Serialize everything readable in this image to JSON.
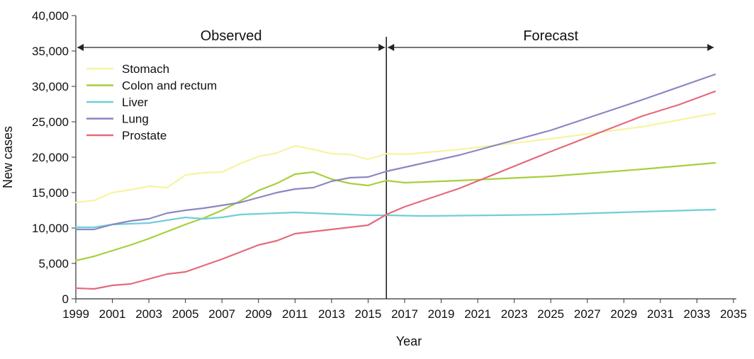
{
  "chart_data": {
    "type": "line",
    "title": "",
    "xlabel": "Year",
    "ylabel": "New cases",
    "xlim": [
      1999,
      2035
    ],
    "ylim": [
      0,
      40000
    ],
    "x_ticks": [
      "1999",
      "2001",
      "2003",
      "2005",
      "2007",
      "2009",
      "2011",
      "2013",
      "2015",
      "2017",
      "2019",
      "2021",
      "2023",
      "2025",
      "2027",
      "2029",
      "2031",
      "2033",
      "2035"
    ],
    "y_ticks": [
      "0",
      "5,000",
      "10,000",
      "15,000",
      "20,000",
      "25,000",
      "30,000",
      "35,000",
      "40,000"
    ],
    "grid": false,
    "legend_position": "top-left",
    "divider_year": 2016,
    "periods": [
      {
        "label": "Observed",
        "from": 1999,
        "to": 2016
      },
      {
        "label": "Forecast",
        "from": 2016,
        "to": 2034
      }
    ],
    "series": [
      {
        "name": "Stomach",
        "color": "#f6f4a0",
        "points": [
          [
            1999,
            13600
          ],
          [
            2000,
            13900
          ],
          [
            2001,
            15000
          ],
          [
            2002,
            15400
          ],
          [
            2003,
            15900
          ],
          [
            2004,
            15700
          ],
          [
            2005,
            17500
          ],
          [
            2006,
            17800
          ],
          [
            2007,
            17900
          ],
          [
            2008,
            19100
          ],
          [
            2009,
            20100
          ],
          [
            2010,
            20600
          ],
          [
            2011,
            21600
          ],
          [
            2012,
            21100
          ],
          [
            2013,
            20500
          ],
          [
            2014,
            20400
          ],
          [
            2015,
            19700
          ],
          [
            2016,
            20500
          ],
          [
            2017,
            20400
          ],
          [
            2020,
            21100
          ],
          [
            2025,
            22600
          ],
          [
            2030,
            24300
          ],
          [
            2034,
            26200
          ]
        ]
      },
      {
        "name": "Colon and rectum",
        "color": "#a8cf3c",
        "points": [
          [
            1999,
            5400
          ],
          [
            2000,
            6000
          ],
          [
            2001,
            6800
          ],
          [
            2002,
            7600
          ],
          [
            2003,
            8500
          ],
          [
            2004,
            9500
          ],
          [
            2005,
            10500
          ],
          [
            2006,
            11400
          ],
          [
            2007,
            12500
          ],
          [
            2008,
            13800
          ],
          [
            2009,
            15300
          ],
          [
            2010,
            16300
          ],
          [
            2011,
            17600
          ],
          [
            2012,
            17900
          ],
          [
            2013,
            16900
          ],
          [
            2014,
            16300
          ],
          [
            2015,
            16000
          ],
          [
            2016,
            16700
          ],
          [
            2017,
            16400
          ],
          [
            2020,
            16700
          ],
          [
            2025,
            17300
          ],
          [
            2030,
            18300
          ],
          [
            2034,
            19200
          ]
        ]
      },
      {
        "name": "Liver",
        "color": "#6fcfd6",
        "points": [
          [
            1999,
            10100
          ],
          [
            2000,
            10100
          ],
          [
            2001,
            10500
          ],
          [
            2002,
            10600
          ],
          [
            2003,
            10700
          ],
          [
            2004,
            11100
          ],
          [
            2005,
            11500
          ],
          [
            2006,
            11300
          ],
          [
            2007,
            11500
          ],
          [
            2008,
            11900
          ],
          [
            2009,
            12000
          ],
          [
            2010,
            12100
          ],
          [
            2011,
            12200
          ],
          [
            2012,
            12100
          ],
          [
            2013,
            12000
          ],
          [
            2014,
            11900
          ],
          [
            2015,
            11800
          ],
          [
            2016,
            11800
          ],
          [
            2018,
            11700
          ],
          [
            2022,
            11800
          ],
          [
            2025,
            11900
          ],
          [
            2030,
            12300
          ],
          [
            2034,
            12600
          ]
        ]
      },
      {
        "name": "Lung",
        "color": "#8c86c2",
        "points": [
          [
            1999,
            9800
          ],
          [
            2000,
            9800
          ],
          [
            2001,
            10500
          ],
          [
            2002,
            11000
          ],
          [
            2003,
            11300
          ],
          [
            2004,
            12100
          ],
          [
            2005,
            12500
          ],
          [
            2006,
            12800
          ],
          [
            2007,
            13200
          ],
          [
            2008,
            13600
          ],
          [
            2009,
            14300
          ],
          [
            2010,
            15000
          ],
          [
            2011,
            15500
          ],
          [
            2012,
            15700
          ],
          [
            2013,
            16600
          ],
          [
            2014,
            17100
          ],
          [
            2015,
            17200
          ],
          [
            2016,
            18000
          ],
          [
            2020,
            20300
          ],
          [
            2025,
            23800
          ],
          [
            2030,
            28100
          ],
          [
            2034,
            31700
          ]
        ]
      },
      {
        "name": "Prostate",
        "color": "#e56a7a",
        "points": [
          [
            1999,
            1500
          ],
          [
            2000,
            1400
          ],
          [
            2001,
            1900
          ],
          [
            2002,
            2100
          ],
          [
            2003,
            2800
          ],
          [
            2004,
            3500
          ],
          [
            2005,
            3800
          ],
          [
            2006,
            4700
          ],
          [
            2007,
            5600
          ],
          [
            2008,
            6600
          ],
          [
            2009,
            7600
          ],
          [
            2010,
            8200
          ],
          [
            2011,
            9200
          ],
          [
            2012,
            9500
          ],
          [
            2013,
            9800
          ],
          [
            2014,
            10100
          ],
          [
            2015,
            10400
          ],
          [
            2016,
            11900
          ],
          [
            2017,
            13000
          ],
          [
            2020,
            15600
          ],
          [
            2025,
            20800
          ],
          [
            2030,
            25800
          ],
          [
            2032,
            27400
          ],
          [
            2034,
            29300
          ]
        ]
      }
    ]
  }
}
